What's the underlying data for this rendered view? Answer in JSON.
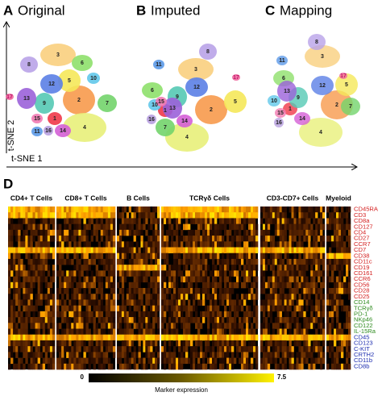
{
  "panels": [
    {
      "letter": "A",
      "title": "Original",
      "clusters": [
        "1",
        "2",
        "3",
        "4",
        "5",
        "6",
        "7",
        "8",
        "9",
        "10",
        "11",
        "12",
        "13",
        "14",
        "15",
        "16",
        "17"
      ]
    },
    {
      "letter": "B",
      "title": "Imputed",
      "clusters": [
        "1",
        "2",
        "3",
        "4",
        "5",
        "6",
        "7",
        "8",
        "9",
        "10",
        "11",
        "12",
        "13",
        "14",
        "15",
        "16",
        "17"
      ]
    },
    {
      "letter": "C",
      "title": "Mapping",
      "clusters": [
        "1",
        "2",
        "3",
        "4",
        "5",
        "6",
        "7",
        "8",
        "9",
        "10",
        "11",
        "12",
        "13",
        "14",
        "15",
        "16",
        "17"
      ]
    }
  ],
  "axes": {
    "x_label": "t-SNE 1",
    "y_label": "t-SNE 2"
  },
  "heatmap": {
    "letter": "D",
    "groups": [
      "CD4+ T Cells",
      "CD8+ T Cells",
      "B Cells",
      "TCRγδ Cells",
      "CD3-CD7+ Cells",
      "Myeloid"
    ],
    "markers": [
      {
        "label": "CD45RA",
        "color": "#d42020"
      },
      {
        "label": "CD3",
        "color": "#d42020"
      },
      {
        "label": "CD8a",
        "color": "#d42020"
      },
      {
        "label": "CD127",
        "color": "#d42020"
      },
      {
        "label": "CD4",
        "color": "#d42020"
      },
      {
        "label": "CD27",
        "color": "#d42020"
      },
      {
        "label": "CCR7",
        "color": "#d42020"
      },
      {
        "label": "CD7",
        "color": "#d42020"
      },
      {
        "label": "CD38",
        "color": "#d42020"
      },
      {
        "label": "CD11c",
        "color": "#d42020"
      },
      {
        "label": "CD19",
        "color": "#d42020"
      },
      {
        "label": "CD161",
        "color": "#d42020"
      },
      {
        "label": "CCR6",
        "color": "#d42020"
      },
      {
        "label": "CD56",
        "color": "#d42020"
      },
      {
        "label": "CD28",
        "color": "#d42020"
      },
      {
        "label": "CD25",
        "color": "#d42020"
      },
      {
        "label": "CD14",
        "color": "#2e8b1e"
      },
      {
        "label": "TCRγδ",
        "color": "#2e8b1e"
      },
      {
        "label": "PD-1",
        "color": "#2e8b1e"
      },
      {
        "label": "NKp46",
        "color": "#2e8b1e"
      },
      {
        "label": "CD122",
        "color": "#2e8b1e"
      },
      {
        "label": "IL-15Ra",
        "color": "#2e8b1e"
      },
      {
        "label": "CD45",
        "color": "#1f2fb0"
      },
      {
        "label": "CD123",
        "color": "#1f2fb0"
      },
      {
        "label": "C-KIT",
        "color": "#1f2fb0"
      },
      {
        "label": "CRTH2",
        "color": "#1f2fb0"
      },
      {
        "label": "CD11b",
        "color": "#1f2fb0"
      },
      {
        "label": "CD8b",
        "color": "#1f2fb0"
      }
    ],
    "colorbar": {
      "min": "0",
      "max": "7.5",
      "label": "Marker expression"
    }
  }
}
